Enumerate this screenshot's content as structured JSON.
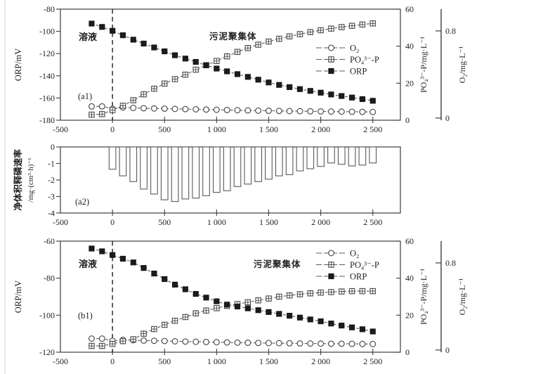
{
  "colors": {
    "bg": "#ffffff",
    "ink": "#3d3d3d",
    "text": "#222222",
    "series_line": "#5a5a5a",
    "marker_stroke": "#474747",
    "filled_marker": "#1b1b1b",
    "scan_edge": "#d9d9d9"
  },
  "annotations": {
    "solution": "溶液",
    "aggregate": "污泥聚集体"
  },
  "legend": {
    "items": [
      {
        "label": "O₂",
        "marker": "open-circle"
      },
      {
        "label": "PO₄³⁻-P",
        "marker": "crossed-square"
      },
      {
        "label": "ORP",
        "marker": "filled-square"
      }
    ]
  },
  "x_axis": {
    "lim": [
      -500,
      2765
    ],
    "ticks": [
      -500,
      0,
      500,
      1000,
      1500,
      2000,
      2500
    ],
    "labels": [
      "-500",
      "0",
      "500",
      "1 000",
      "1 500",
      "2 000",
      "2 500"
    ]
  },
  "chart_data": [
    {
      "id": "a1",
      "type": "line",
      "panel_label": "(a1)",
      "vline_x": 0,
      "left_axis": {
        "title": "ORP/mV",
        "range": [
          -80,
          -180
        ],
        "tick_values": [
          -80,
          -100,
          -120,
          -140,
          -160,
          -180
        ],
        "ticks": [
          "-80",
          "-100",
          "-120",
          "-140",
          "-160",
          "-180"
        ]
      },
      "right_axis": {
        "title": "PO₄³⁻-P/mg·L⁻¹",
        "range": [
          60,
          0
        ],
        "tick_values": [
          60,
          40,
          20,
          0
        ],
        "ticks": [
          "60",
          "40",
          "20",
          "0"
        ]
      },
      "o2_axis": {
        "title": "O₂/mg·L⁻¹",
        "range": [
          1.0,
          -0.02
        ],
        "tick_values": [
          0.8,
          0
        ],
        "ticks": [
          "0.8",
          "0"
        ]
      },
      "x": [
        -200,
        -100,
        0,
        100,
        200,
        300,
        400,
        500,
        600,
        700,
        800,
        900,
        1000,
        1100,
        1200,
        1300,
        1400,
        1500,
        1600,
        1700,
        1800,
        1900,
        2000,
        2100,
        2200,
        2300,
        2400,
        2500
      ],
      "series": [
        {
          "name": "O₂",
          "axis": "o2",
          "marker": "open-circle",
          "values": [
            0.107,
            0.107,
            0.085,
            0.097,
            0.093,
            0.09,
            0.088,
            0.086,
            0.084,
            0.082,
            0.08,
            0.078,
            0.076,
            0.074,
            0.072,
            0.07,
            0.068,
            0.067,
            0.065,
            0.064,
            0.063,
            0.062,
            0.061,
            0.06,
            0.059,
            0.058,
            0.057,
            0.056
          ]
        },
        {
          "name": "PO₄³⁻-P",
          "axis": "right",
          "marker": "crossed-square",
          "values": [
            3.0,
            3.3,
            5.5,
            7.8,
            10.8,
            14.0,
            17.0,
            19.8,
            22.2,
            24.6,
            27.3,
            29.7,
            32.0,
            34.5,
            36.9,
            39.0,
            40.8,
            42.5,
            44.0,
            45.3,
            46.5,
            47.6,
            48.6,
            49.5,
            50.3,
            51.0,
            51.7,
            52.3
          ]
        },
        {
          "name": "ORP",
          "axis": "left",
          "marker": "filled-square",
          "values": [
            -93,
            -96,
            -99.5,
            -103.5,
            -107.5,
            -111,
            -114.5,
            -118,
            -121.5,
            -124.5,
            -127.5,
            -130.5,
            -133.5,
            -136,
            -138.5,
            -141,
            -143.5,
            -146,
            -148.2,
            -150.2,
            -152,
            -153.6,
            -155.2,
            -156.8,
            -158.2,
            -159.6,
            -161,
            -162.5
          ]
        }
      ]
    },
    {
      "id": "a2",
      "type": "bar",
      "panel_label": "(a2)",
      "left_axis": {
        "title_cn": "净体积释磷速率",
        "title_unit": "/mg·(cm³·h)⁻¹",
        "range": [
          0,
          -4
        ],
        "tick_values": [
          0,
          -1,
          -2,
          -3,
          -4
        ],
        "ticks": [
          "0",
          "-1",
          "-2",
          "-3",
          "-4"
        ]
      },
      "x": [
        0,
        100,
        200,
        300,
        400,
        500,
        600,
        700,
        800,
        900,
        1000,
        1100,
        1200,
        1300,
        1400,
        1500,
        1600,
        1700,
        1800,
        1900,
        2000,
        2100,
        2200,
        2300,
        2400,
        2500
      ],
      "values": [
        -1.35,
        -1.75,
        -2.1,
        -2.55,
        -2.85,
        -3.2,
        -3.3,
        -3.15,
        -3.1,
        -2.95,
        -2.75,
        -2.65,
        -2.4,
        -2.25,
        -2.1,
        -1.95,
        -1.75,
        -1.68,
        -1.45,
        -1.32,
        -1.18,
        -0.97,
        -1.05,
        -1.15,
        -1.1,
        -0.97
      ]
    },
    {
      "id": "b1",
      "type": "line",
      "panel_label": "(b1)",
      "vline_x": 0,
      "left_axis": {
        "title": "ORP/mV",
        "range": [
          -60,
          -120
        ],
        "tick_values": [
          -60,
          -80,
          -100,
          -120
        ],
        "ticks": [
          "-60",
          "-80",
          "-100",
          "-120"
        ]
      },
      "right_axis": {
        "title": "PO₄³⁻-P/mg·L⁻¹",
        "range": [
          60,
          0
        ],
        "tick_values": [
          60,
          40,
          20,
          0
        ],
        "ticks": [
          "60",
          "40",
          "20",
          "0"
        ]
      },
      "o2_axis": {
        "title": "O₂/mg·L⁻¹",
        "range": [
          1.0,
          -0.02
        ],
        "tick_values": [
          0.8,
          0
        ],
        "ticks": [
          "0.8",
          "0"
        ]
      },
      "x": [
        -200,
        -100,
        0,
        100,
        200,
        300,
        400,
        500,
        600,
        700,
        800,
        900,
        1000,
        1100,
        1200,
        1300,
        1400,
        1500,
        1600,
        1700,
        1800,
        1900,
        2000,
        2100,
        2200,
        2300,
        2400,
        2500
      ],
      "series": [
        {
          "name": "O₂",
          "axis": "o2",
          "marker": "open-circle",
          "values": [
            0.105,
            0.105,
            0.085,
            0.093,
            0.09,
            0.087,
            0.085,
            0.083,
            0.08,
            0.078,
            0.076,
            0.074,
            0.072,
            0.07,
            0.068,
            0.067,
            0.065,
            0.064,
            0.063,
            0.062,
            0.061,
            0.06,
            0.059,
            0.058,
            0.058,
            0.057,
            0.056,
            0.055
          ]
        },
        {
          "name": "PO₄³⁻-P",
          "axis": "right",
          "marker": "crossed-square",
          "values": [
            3.4,
            3.4,
            4.5,
            6.0,
            7.0,
            10.0,
            12.5,
            14.8,
            17.0,
            19.0,
            21.0,
            22.5,
            23.8,
            25.0,
            26.0,
            27.0,
            28.0,
            29.0,
            30.0,
            30.7,
            31.3,
            31.8,
            32.2,
            32.5,
            32.8,
            33.0,
            33.0,
            33.0
          ]
        },
        {
          "name": "ORP",
          "axis": "left",
          "marker": "filled-square",
          "values": [
            -64,
            -65.5,
            -67.5,
            -69.5,
            -71.5,
            -74.5,
            -77.5,
            -80.5,
            -83.5,
            -86,
            -88.5,
            -90.5,
            -92.5,
            -94.3,
            -95.3,
            -96.3,
            -97.3,
            -98.3,
            -99.3,
            -100.3,
            -101.3,
            -102.3,
            -103.3,
            -104.5,
            -105.6,
            -106.6,
            -107.6,
            -108.8
          ]
        }
      ]
    }
  ]
}
